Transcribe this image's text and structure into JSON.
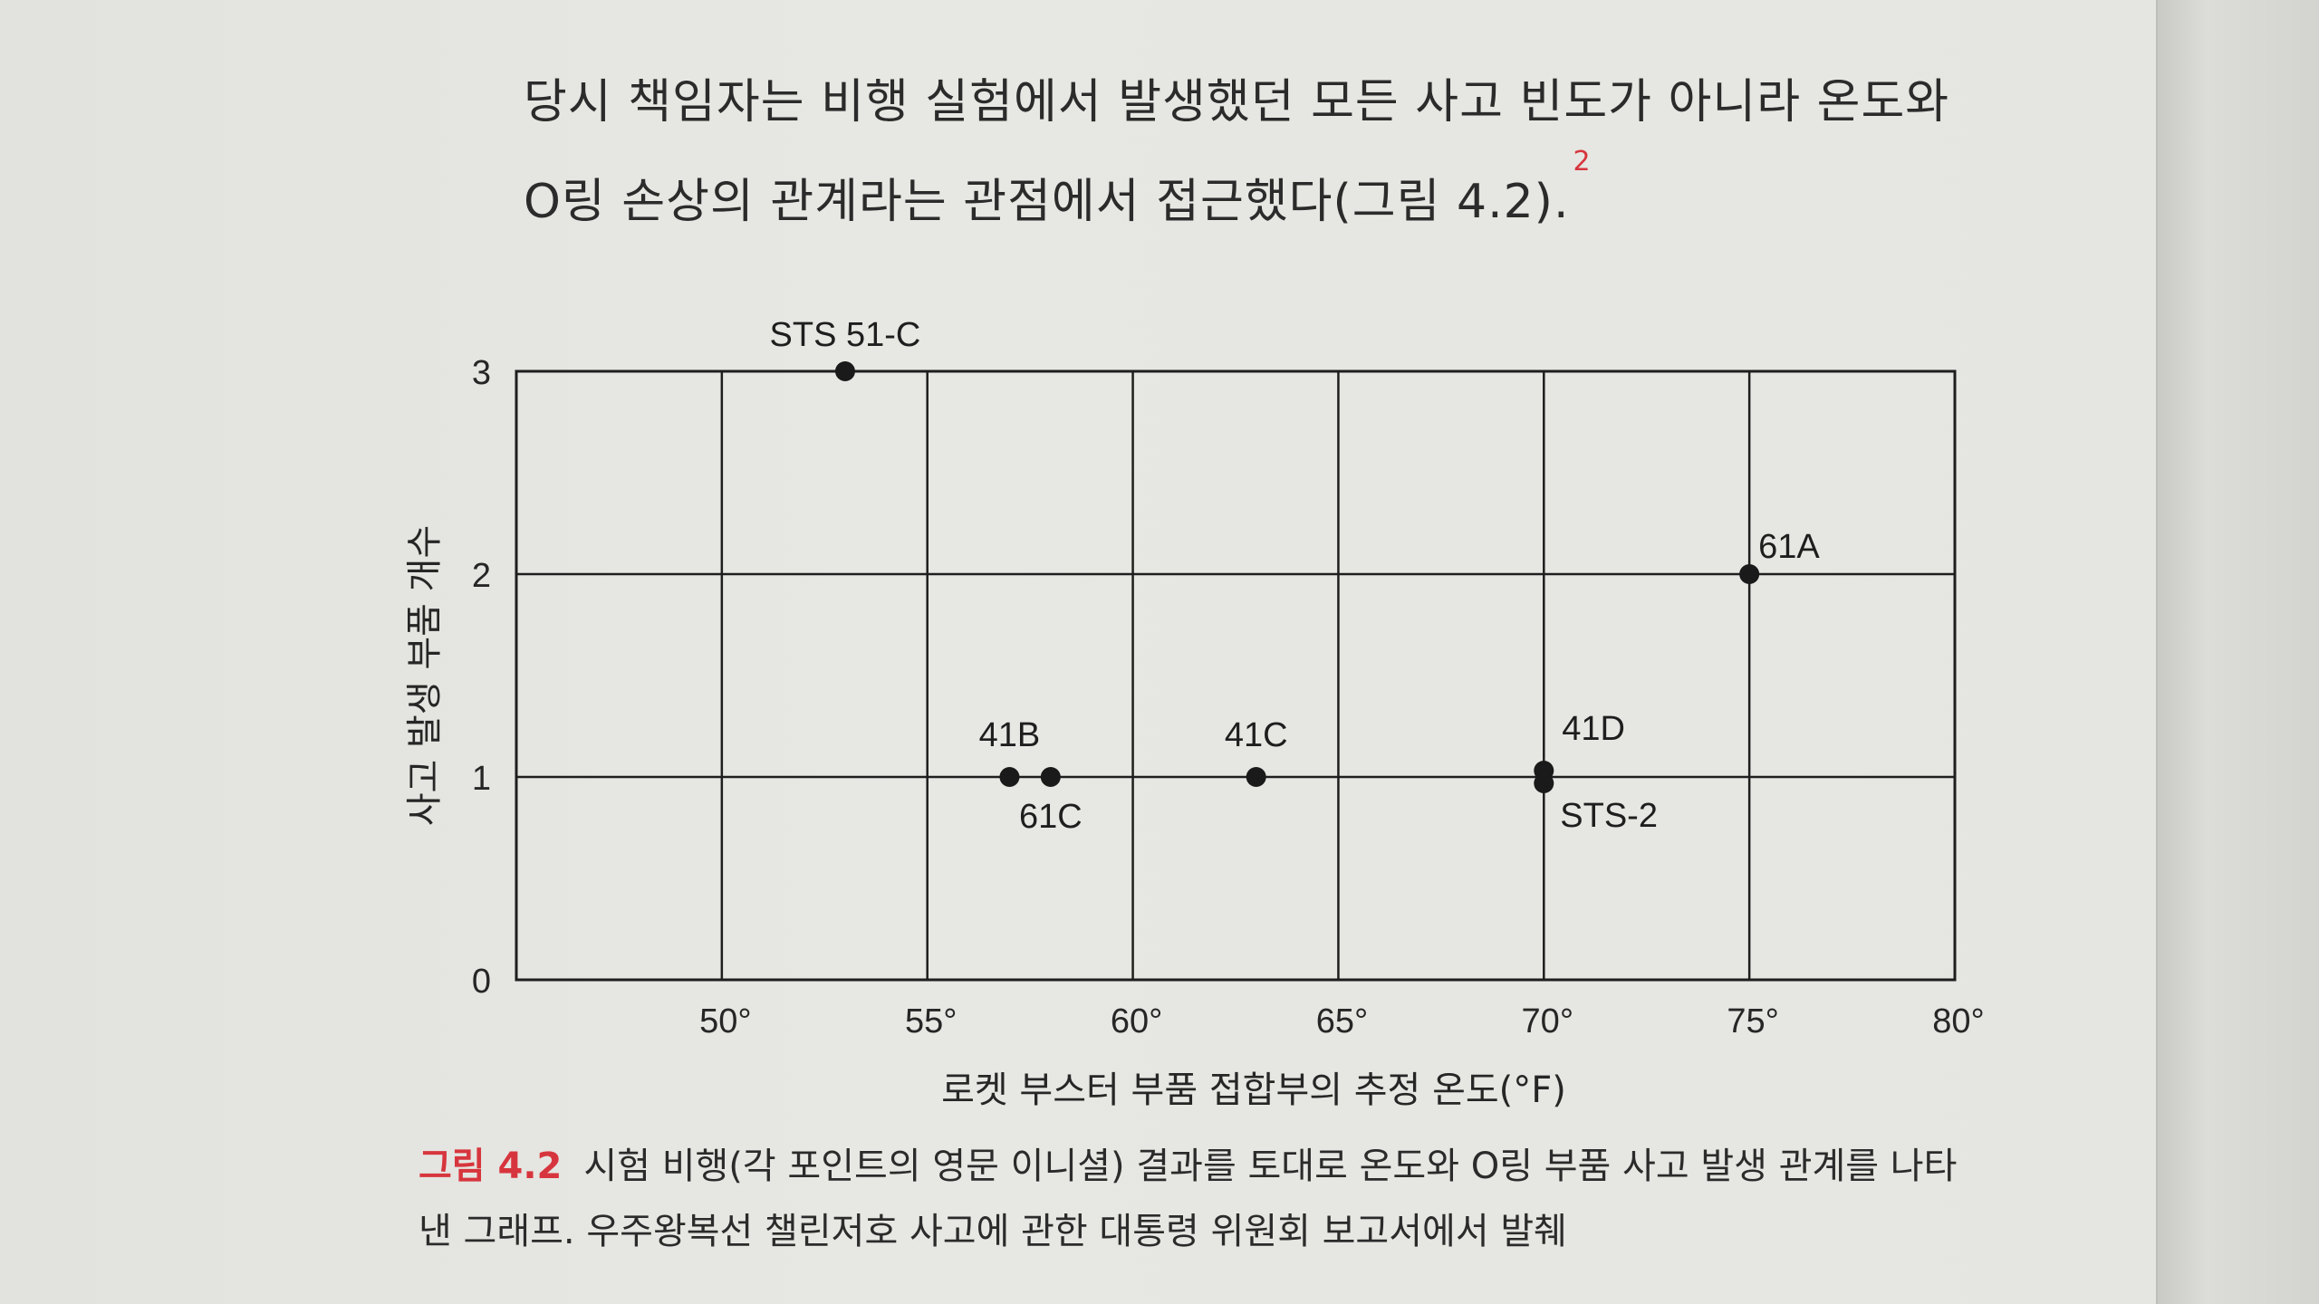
{
  "text": {
    "line1": "당시 책임자는 비행 실험에서 발생했던 모든 사고 빈도가 아니라 온도와",
    "line2": "O링 손상의 관계라는 관점에서 접근했다(그림 4.2).",
    "footnote": "2"
  },
  "caption": {
    "label": "그림 4.2",
    "line1": "시험 비행(각 포인트의 영문 이니셜) 결과를 토대로 온도와 O링 부품 사고 발생 관계를 나타",
    "line2": "낸 그래프. 우주왕복선 챌린저호 사고에 관한 대통령 위원회 보고서에서 발췌"
  },
  "colors": {
    "accent": "#d7353d",
    "ink": "#262626",
    "paper": "#e5e5e1"
  },
  "chart_data": {
    "type": "scatter",
    "xlabel": "로켓 부스터 부품 접합부의 추정 온도(°F)",
    "ylabel": "사고 발생 부품 개수",
    "xlim": [
      45,
      80
    ],
    "ylim": [
      0,
      3
    ],
    "x_ticks": [
      {
        "value": 50,
        "label": "50°"
      },
      {
        "value": 55,
        "label": "55°"
      },
      {
        "value": 60,
        "label": "60°"
      },
      {
        "value": 65,
        "label": "65°"
      },
      {
        "value": 70,
        "label": "70°"
      },
      {
        "value": 75,
        "label": "75°"
      },
      {
        "value": 80,
        "label": "80°"
      }
    ],
    "y_ticks": [
      {
        "value": 0,
        "label": "0"
      },
      {
        "value": 1,
        "label": "1"
      },
      {
        "value": 2,
        "label": "2"
      },
      {
        "value": 3,
        "label": "3"
      }
    ],
    "grid": true,
    "points": [
      {
        "label": "STS 51-C",
        "x": 53,
        "y": 3
      },
      {
        "label": "41B",
        "x": 57,
        "y": 1
      },
      {
        "label": "61C",
        "x": 58,
        "y": 1
      },
      {
        "label": "41C",
        "x": 63,
        "y": 1
      },
      {
        "label": "41D",
        "x": 70,
        "y": 1
      },
      {
        "label": "STS-2",
        "x": 70,
        "y": 1
      },
      {
        "label": "61A",
        "x": 75,
        "y": 2
      }
    ]
  }
}
